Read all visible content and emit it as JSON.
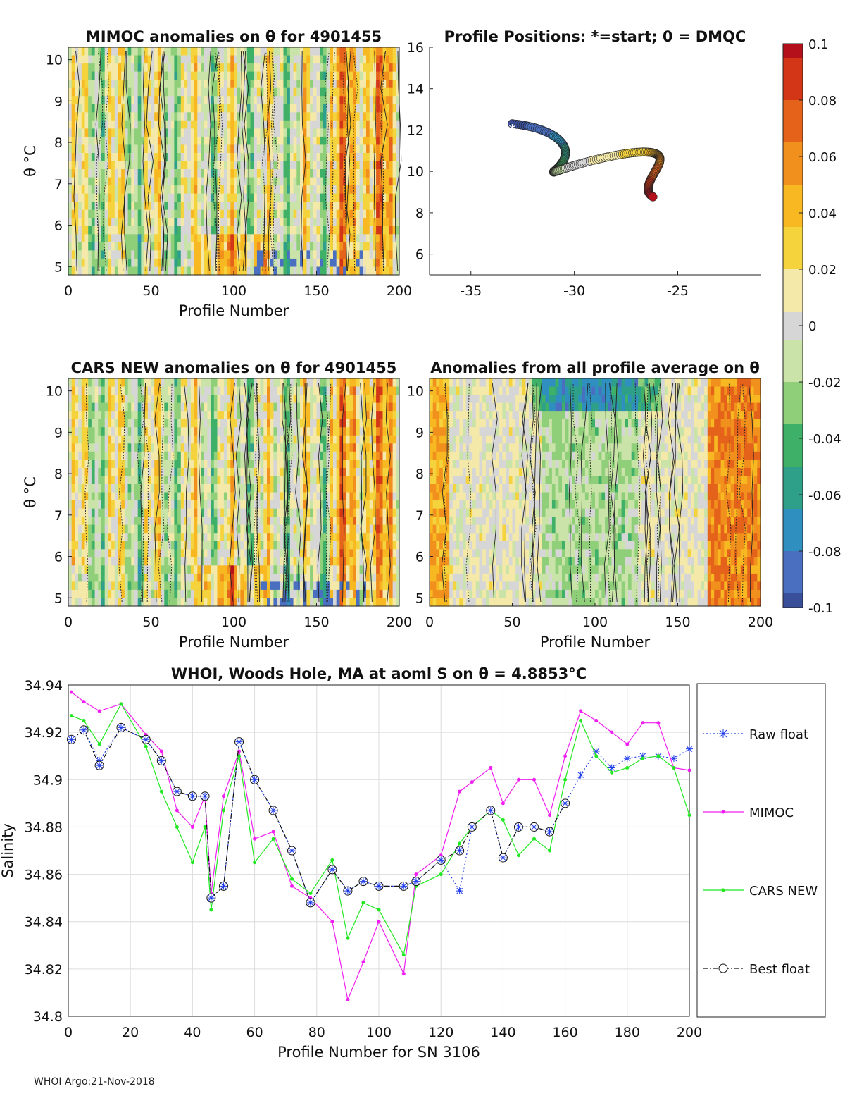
{
  "footer": "WHOI Argo:21-Nov-2018",
  "colors": {
    "colormap": [
      "#3a4f9a",
      "#4a6fc0",
      "#2f8fbf",
      "#2ea08a",
      "#3fb068",
      "#8fcf7a",
      "#c9e3a8",
      "#d6d6d6",
      "#f4e9a8",
      "#f5d33c",
      "#f7b822",
      "#f1901c",
      "#e4621a",
      "#d23617",
      "#b3101c"
    ],
    "raw": "#1d3ae8",
    "mimoc": "#f01ef0",
    "cars": "#22e822",
    "best": "#111111",
    "grid": "#dcdcdc"
  },
  "colorbar": {
    "ticks": [
      "0.1",
      "0.08",
      "0.06",
      "0.04",
      "0.02",
      "0",
      "-0.02",
      "-0.04",
      "-0.06",
      "-0.08",
      "-0.1"
    ]
  },
  "panel_mimoc": {
    "title": "MIMOC anomalies on θ  for 4901455",
    "ylabel": "θ °C",
    "xlabel": "Profile Number",
    "xticks": [
      "0",
      "50",
      "100",
      "150",
      "200"
    ],
    "yticks": [
      "5",
      "6",
      "7",
      "8",
      "9",
      "10"
    ]
  },
  "panel_positions": {
    "title": "Profile Positions: *=start; 0 = DMQC",
    "xticks": [
      "-35",
      "-30",
      "-25"
    ],
    "yticks": [
      "6",
      "8",
      "10",
      "12",
      "14",
      "16"
    ]
  },
  "panel_cars": {
    "title": "CARS NEW anomalies on θ for 4901455",
    "ylabel": "θ °C",
    "xlabel": "Profile Number",
    "xticks": [
      "0",
      "50",
      "100",
      "150",
      "200"
    ],
    "yticks": [
      "5",
      "6",
      "7",
      "8",
      "9",
      "10"
    ]
  },
  "panel_avg": {
    "title": "Anomalies from all profile average on θ",
    "xlabel": "Profile Number",
    "xticks": [
      "0",
      "50",
      "100",
      "150",
      "200"
    ],
    "yticks": [
      "5",
      "6",
      "7",
      "8",
      "9",
      "10"
    ]
  },
  "chart_data": {
    "type": "line",
    "title": "WHOI, Woods Hole, MA at aoml S on θ = 4.8853°C",
    "xlabel": "Profile Number for SN 3106",
    "ylabel": "Salinity",
    "xlim": [
      0,
      200
    ],
    "ylim": [
      34.8,
      34.94
    ],
    "xticks": [
      "0",
      "20",
      "40",
      "60",
      "80",
      "100",
      "120",
      "140",
      "160",
      "180",
      "200"
    ],
    "yticks": [
      "34.8",
      "34.82",
      "34.84",
      "34.86",
      "34.88",
      "34.9",
      "34.92",
      "34.94"
    ],
    "x_knots": [
      1,
      5,
      10,
      17,
      25,
      30,
      35,
      40,
      44,
      46,
      50,
      55,
      60,
      66,
      72,
      78,
      85,
      90,
      95,
      100,
      108,
      112,
      120,
      126,
      130,
      136,
      140,
      145,
      150,
      155,
      160,
      165,
      170,
      175,
      180,
      185,
      190,
      195,
      200
    ],
    "series": [
      {
        "name": "Raw float",
        "values": [
          34.917,
          34.921,
          34.908,
          34.922,
          34.917,
          34.908,
          34.895,
          34.893,
          34.893,
          34.85,
          34.855,
          34.916,
          34.9,
          34.887,
          34.87,
          34.848,
          34.862,
          34.853,
          34.857,
          34.855,
          34.855,
          34.857,
          34.866,
          34.853,
          34.88,
          34.887,
          34.867,
          34.88,
          34.88,
          34.878,
          34.89,
          34.902,
          34.912,
          34.905,
          34.909,
          34.91,
          34.91,
          34.909,
          34.913
        ]
      },
      {
        "name": "MIMOC",
        "values": [
          34.937,
          34.933,
          34.929,
          34.932,
          34.919,
          34.912,
          34.887,
          34.88,
          34.893,
          34.852,
          34.893,
          34.912,
          34.875,
          34.878,
          34.855,
          34.85,
          34.84,
          34.807,
          34.823,
          34.84,
          34.818,
          34.86,
          34.868,
          34.895,
          34.899,
          34.905,
          34.89,
          34.9,
          34.9,
          34.885,
          34.91,
          34.929,
          34.925,
          34.92,
          34.915,
          34.924,
          34.924,
          34.905,
          34.904
        ]
      },
      {
        "name": "CARS NEW",
        "values": [
          34.927,
          34.925,
          34.915,
          34.932,
          34.914,
          34.895,
          34.88,
          34.865,
          34.88,
          34.845,
          34.887,
          34.91,
          34.865,
          34.875,
          34.858,
          34.852,
          34.866,
          34.833,
          34.848,
          34.845,
          34.826,
          34.855,
          34.86,
          34.873,
          34.88,
          34.887,
          34.883,
          34.868,
          34.875,
          34.87,
          34.9,
          34.925,
          34.91,
          34.903,
          34.905,
          34.909,
          34.91,
          34.905,
          34.885
        ]
      },
      {
        "name": "Best float",
        "values": [
          34.917,
          34.921,
          34.906,
          34.922,
          34.917,
          34.908,
          34.895,
          34.893,
          34.893,
          34.85,
          34.855,
          34.916,
          34.9,
          34.887,
          34.87,
          34.848,
          34.862,
          34.853,
          34.857,
          34.855,
          34.855,
          34.857,
          34.866,
          34.87,
          34.88,
          34.887,
          34.867,
          34.88,
          34.88,
          34.878,
          34.89
        ]
      }
    ],
    "legend": [
      "Raw float",
      "MIMOC",
      "CARS NEW",
      "Best float"
    ]
  }
}
